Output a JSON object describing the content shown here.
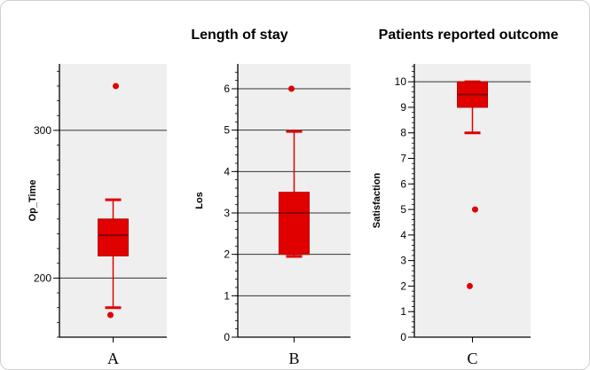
{
  "colors": {
    "box": "#e00000",
    "grid": "#333333",
    "panel": "#efefef",
    "axis": "#000000"
  },
  "chart_data": [
    {
      "type": "box",
      "title": "",
      "ylabel": "Op_Time",
      "category": "A",
      "ylim": [
        160,
        345
      ],
      "yticks": [
        200,
        300
      ],
      "minor_step": 10,
      "grid": [
        200,
        300
      ],
      "stats": {
        "whisker_low": 180,
        "q1": 215,
        "median": 229,
        "q3": 240,
        "whisker_high": 253
      },
      "outliers": [
        175,
        330
      ]
    },
    {
      "type": "box",
      "title": "Length of stay",
      "ylabel": "Los",
      "category": "B",
      "ylim": [
        0,
        6.6
      ],
      "yticks": [
        0,
        1,
        2,
        3,
        4,
        5,
        6
      ],
      "minor_step": 0.2,
      "grid": [
        1,
        2,
        3,
        4,
        5,
        6
      ],
      "stats": {
        "whisker_low": 1.95,
        "q1": 2.0,
        "median": 3.0,
        "q3": 3.5,
        "whisker_high": 4.97
      },
      "outliers": [
        6
      ]
    },
    {
      "type": "box",
      "title": "Patients reported outcome",
      "ylabel": "Satisfaction",
      "category": "C",
      "ylim": [
        0,
        10.7
      ],
      "yticks": [
        0,
        1,
        2,
        3,
        4,
        5,
        6,
        7,
        8,
        9,
        10
      ],
      "minor_step": 0.2,
      "grid": [
        10
      ],
      "stats": {
        "whisker_low": 8.0,
        "q1": 9.0,
        "median": 9.5,
        "q3": 10.0,
        "whisker_high": 10.0
      },
      "outliers": [
        2,
        5
      ]
    }
  ]
}
